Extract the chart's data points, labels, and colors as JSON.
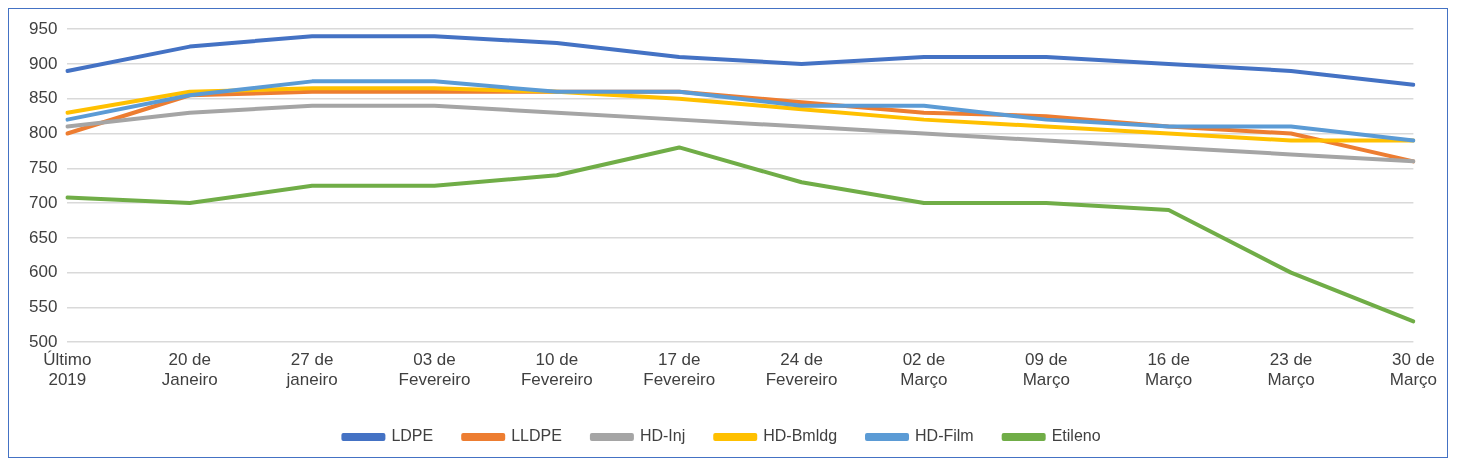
{
  "chart_data": {
    "type": "line",
    "categories": [
      "Último\n2019",
      "20 de\nJaneiro",
      "27 de\njaneiro",
      "03 de\nFevereiro",
      "10 de\nFevereiro",
      "17 de\nFevereiro",
      "24 de\nFevereiro",
      "02 de\nMarço",
      "09 de\nMarço",
      "16 de\nMarço",
      "23 de\nMarço",
      "30 de\nMarço"
    ],
    "series": [
      {
        "name": "LDPE",
        "color": "#4472c4",
        "values": [
          890,
          925,
          940,
          940,
          930,
          910,
          900,
          910,
          910,
          900,
          890,
          870
        ]
      },
      {
        "name": "LLDPE",
        "color": "#ed7d31",
        "values": [
          800,
          855,
          860,
          860,
          860,
          860,
          845,
          830,
          825,
          810,
          800,
          760
        ]
      },
      {
        "name": "HD-Inj",
        "color": "#a5a5a5",
        "values": [
          810,
          830,
          840,
          840,
          830,
          820,
          810,
          800,
          790,
          780,
          770,
          760
        ]
      },
      {
        "name": "HD-Bmldg",
        "color": "#ffc000",
        "values": [
          830,
          860,
          865,
          865,
          860,
          850,
          835,
          820,
          810,
          800,
          790,
          790
        ]
      },
      {
        "name": "HD-Film",
        "color": "#5b9bd5",
        "values": [
          820,
          855,
          875,
          875,
          860,
          860,
          840,
          840,
          820,
          810,
          810,
          790
        ]
      },
      {
        "name": "Etileno",
        "color": "#70ad47",
        "values": [
          708,
          700,
          725,
          725,
          740,
          780,
          730,
          700,
          700,
          690,
          600,
          530
        ]
      }
    ],
    "ylim": [
      500,
      950
    ],
    "yticks": [
      500,
      550,
      600,
      650,
      700,
      750,
      800,
      850,
      900,
      950
    ],
    "grid": "y",
    "legend": "bottom",
    "marker": "none",
    "line_style": "solid"
  }
}
